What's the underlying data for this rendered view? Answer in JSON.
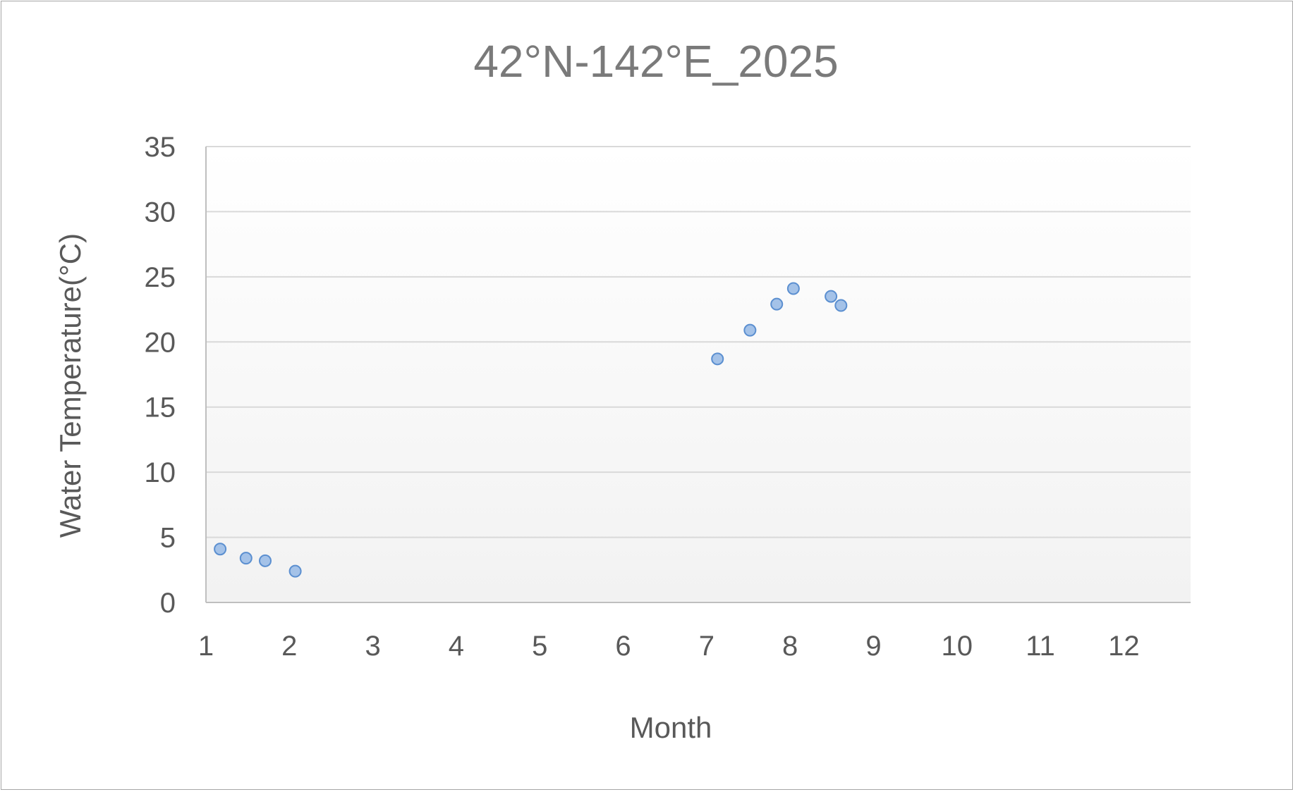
{
  "chart_data": {
    "type": "scatter",
    "title": "42°N-142°E_2025",
    "xlabel": "Month",
    "ylabel": "Water Temperature(°C)",
    "xlim": [
      1,
      12.8
    ],
    "ylim": [
      0,
      35
    ],
    "xticks": [
      1,
      2,
      3,
      4,
      5,
      6,
      7,
      8,
      9,
      10,
      11,
      12
    ],
    "yticks": [
      0,
      5,
      10,
      15,
      20,
      25,
      30,
      35
    ],
    "grid": true,
    "legend": "none",
    "colors": {
      "marker_fill": "#a4c2e8",
      "marker_stroke": "#5b8fd0",
      "grid": "#d9d9d9",
      "axis": "#bfbfbf",
      "plot_bg_top": "#ffffff",
      "plot_bg_bottom": "#f2f2f2"
    },
    "points": [
      {
        "x": 1.17,
        "y": 4.1
      },
      {
        "x": 1.48,
        "y": 3.4
      },
      {
        "x": 1.71,
        "y": 3.2
      },
      {
        "x": 2.07,
        "y": 2.4
      },
      {
        "x": 7.13,
        "y": 18.7
      },
      {
        "x": 7.52,
        "y": 20.9
      },
      {
        "x": 7.84,
        "y": 22.9
      },
      {
        "x": 8.04,
        "y": 24.1
      },
      {
        "x": 8.49,
        "y": 23.5
      },
      {
        "x": 8.61,
        "y": 22.8
      }
    ]
  }
}
